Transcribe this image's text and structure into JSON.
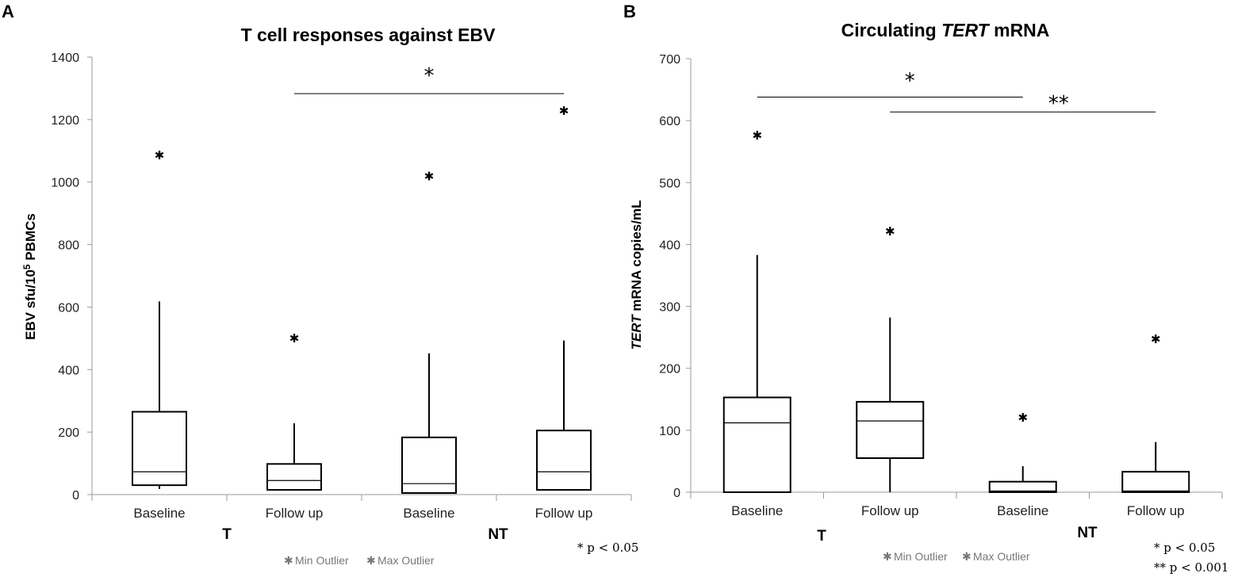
{
  "chart_data": [
    {
      "panel": "A",
      "type": "boxplot",
      "title": "T cell responses against EBV",
      "ylabel_main": "EBV sfu/10",
      "ylabel_sup": "5",
      "ylabel_tail": " PBMCs",
      "ylim": [
        0,
        1400
      ],
      "yticks": [
        0,
        200,
        400,
        600,
        800,
        1000,
        1200,
        1400
      ],
      "categories": [
        "Baseline",
        "Follow up",
        "Baseline",
        "Follow up"
      ],
      "groups": [
        {
          "label": "T",
          "categories": [
            0,
            1
          ]
        },
        {
          "label": "NT",
          "categories": [
            2,
            3
          ]
        }
      ],
      "boxes": [
        {
          "min": 18,
          "q1": 30,
          "median": 73,
          "q3": 265,
          "max": 618,
          "outliers": [
            1085
          ]
        },
        {
          "min": 15,
          "q1": 15,
          "median": 45,
          "q3": 98,
          "max": 228,
          "outliers": [
            500
          ]
        },
        {
          "min": 5,
          "q1": 5,
          "median": 35,
          "q3": 183,
          "max": 452,
          "outliers": [
            1018
          ]
        },
        {
          "min": 15,
          "q1": 15,
          "median": 73,
          "q3": 205,
          "max": 493,
          "outliers": [
            1228
          ]
        }
      ],
      "significance": [
        {
          "from": 1,
          "to": 3,
          "y": 1283,
          "label": "*"
        }
      ],
      "legend": [
        "Min Outlier",
        "Max Outlier"
      ],
      "legend_markers": [
        "✱",
        "✱"
      ],
      "pvalue_notes": [
        "* p < 0.05"
      ]
    },
    {
      "panel": "B",
      "type": "boxplot",
      "title_pre": "Circulating ",
      "title_italic": "TERT",
      "title_post": " mRNA",
      "ylabel_italic": "TERT",
      "ylabel_tail": " mRNA copies/mL",
      "ylim": [
        0,
        700
      ],
      "yticks": [
        0,
        100,
        200,
        300,
        400,
        500,
        600,
        700
      ],
      "categories": [
        "Baseline",
        "Follow up",
        "Baseline",
        "Follow up"
      ],
      "groups": [
        {
          "label": "T",
          "categories": [
            0,
            1
          ]
        },
        {
          "label": "NT",
          "categories": [
            2,
            3
          ]
        }
      ],
      "boxes": [
        {
          "min": 0,
          "q1": 0,
          "median": 112,
          "q3": 153,
          "max": 383,
          "outliers": [
            576
          ]
        },
        {
          "min": 0,
          "q1": 55,
          "median": 115,
          "q3": 146,
          "max": 282,
          "outliers": [
            421
          ]
        },
        {
          "min": 0,
          "q1": 0,
          "median": 2,
          "q3": 17,
          "max": 42,
          "outliers": [
            120
          ]
        },
        {
          "min": 0,
          "q1": 0,
          "median": 2,
          "q3": 33,
          "max": 81,
          "outliers": [
            247
          ]
        }
      ],
      "significance": [
        {
          "from": 0,
          "to": 2,
          "y": 638,
          "label": "*"
        },
        {
          "from": 1,
          "to": 3,
          "y": 614,
          "label": "**"
        }
      ],
      "legend": [
        "Min Outlier",
        "Max Outlier"
      ],
      "legend_markers": [
        "✱",
        "✱"
      ],
      "pvalue_notes": [
        "*   p < 0.05",
        "** p < 0.001"
      ]
    }
  ]
}
